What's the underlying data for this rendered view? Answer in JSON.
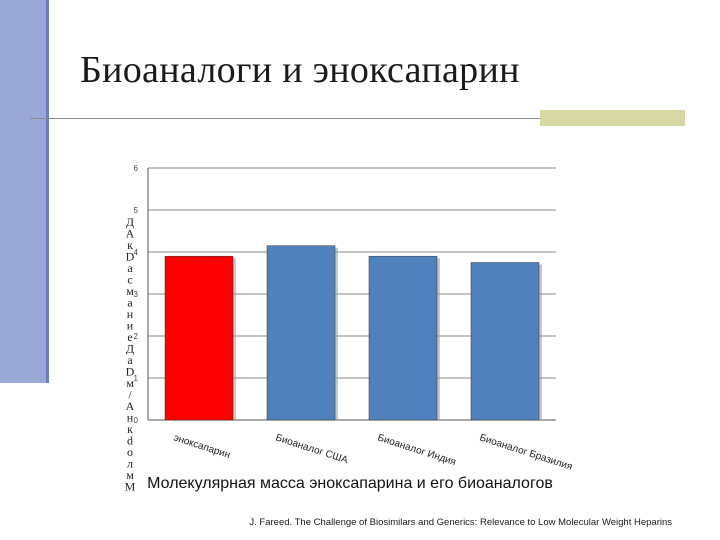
{
  "slide": {
    "title": "Биоаналоги и эноксапарин",
    "caption": "Молекулярная масса эноксапарина и его биоаналогов",
    "source": "J. Fareed. The Challenge of Biosimilars and Generics: Relevance to Low Molecular Weight Heparins"
  },
  "colors": {
    "sidebar": "#99a8d6",
    "accent_block": "#d6d7a3",
    "highlight_bar": "#ff0000",
    "bar": "#4f81bd"
  },
  "chart_data": {
    "type": "bar",
    "categories": [
      "эноксапарин",
      "Биоаналог США",
      "Биоаналог Индия",
      "Биоаналог Бразилия"
    ],
    "values": [
      3.9,
      4.15,
      3.9,
      3.75
    ],
    "bar_colors": [
      "#ff0000",
      "#4f81bd",
      "#4f81bd",
      "#4f81bd"
    ],
    "ylabel": "ДА кDа см ан ие ДаD м/ А нкdо лм М",
    "ylim": [
      0,
      6
    ],
    "yticks": [
      0,
      1,
      2,
      3,
      4,
      5,
      6
    ],
    "grid": true
  }
}
